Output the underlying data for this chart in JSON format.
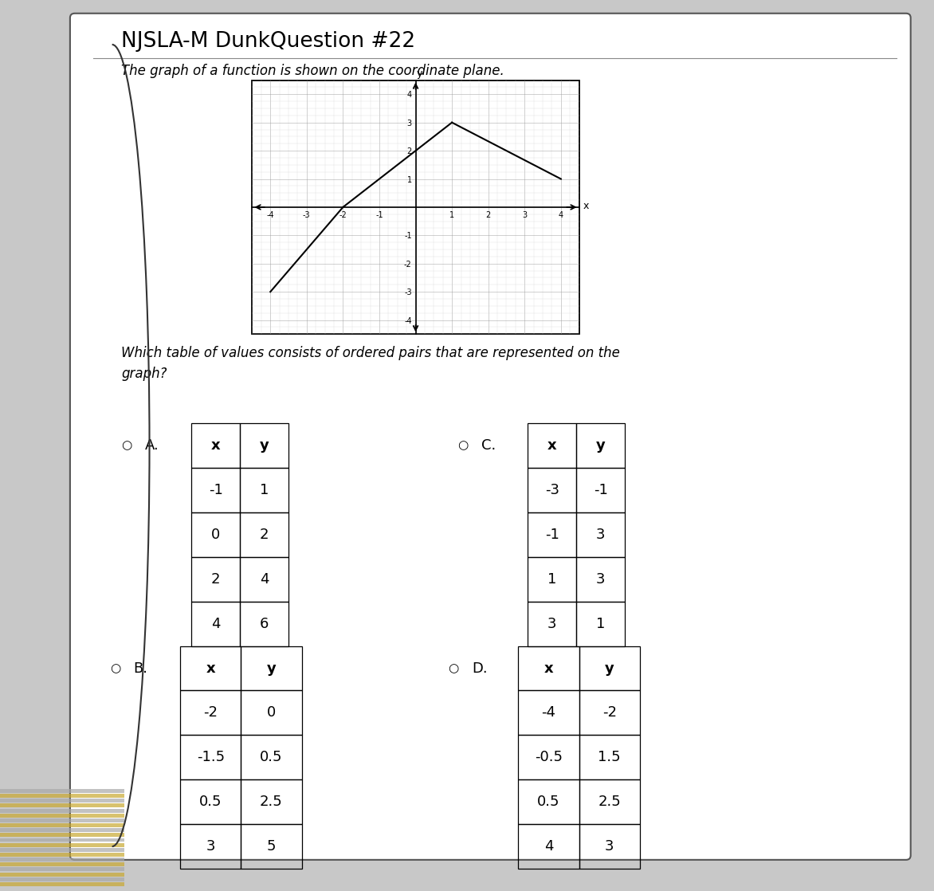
{
  "title": "NJSLA-M DunkQuestion #22",
  "subtitle": "The graph of a function is shown on the coordinate plane.",
  "question": "Which table of values consists of ordered pairs that are represented on the\ngraph?",
  "bg_color": "#c8c8c8",
  "page_color": "#e8e6e2",
  "graph": {
    "xmin": -4,
    "xmax": 4,
    "ymin": -4,
    "ymax": 4,
    "segments": [
      {
        "x": [
          -4,
          -2
        ],
        "y": [
          -3,
          0
        ]
      },
      {
        "x": [
          -2,
          1
        ],
        "y": [
          0,
          3
        ]
      },
      {
        "x": [
          1,
          4
        ],
        "y": [
          3,
          1
        ]
      }
    ]
  },
  "options": [
    {
      "label": "A.",
      "headers": [
        "x",
        "y"
      ],
      "rows": [
        [
          "-1",
          "1"
        ],
        [
          "0",
          "2"
        ],
        [
          "2",
          "4"
        ],
        [
          "4",
          "6"
        ]
      ]
    },
    {
      "label": "C.",
      "headers": [
        "x",
        "y"
      ],
      "rows": [
        [
          "-3",
          "-1"
        ],
        [
          "-1",
          "3"
        ],
        [
          "1",
          "3"
        ],
        [
          "3",
          "1"
        ]
      ]
    },
    {
      "label": "B.",
      "headers": [
        "x",
        "y"
      ],
      "rows": [
        [
          "-2",
          "0"
        ],
        [
          "-1.5",
          "0.5"
        ],
        [
          "0.5",
          "2.5"
        ],
        [
          "3",
          "5"
        ]
      ]
    },
    {
      "label": "D.",
      "headers": [
        "x",
        "y"
      ],
      "rows": [
        [
          "-4",
          "-2"
        ],
        [
          "-0.5",
          "1.5"
        ],
        [
          "0.5",
          "2.5"
        ],
        [
          "4",
          "3"
        ]
      ]
    }
  ],
  "frame_color_gold": "#c8a830",
  "frame_color_silver": "#a8a8a8",
  "frame_color_dark": "#1a1a1a"
}
